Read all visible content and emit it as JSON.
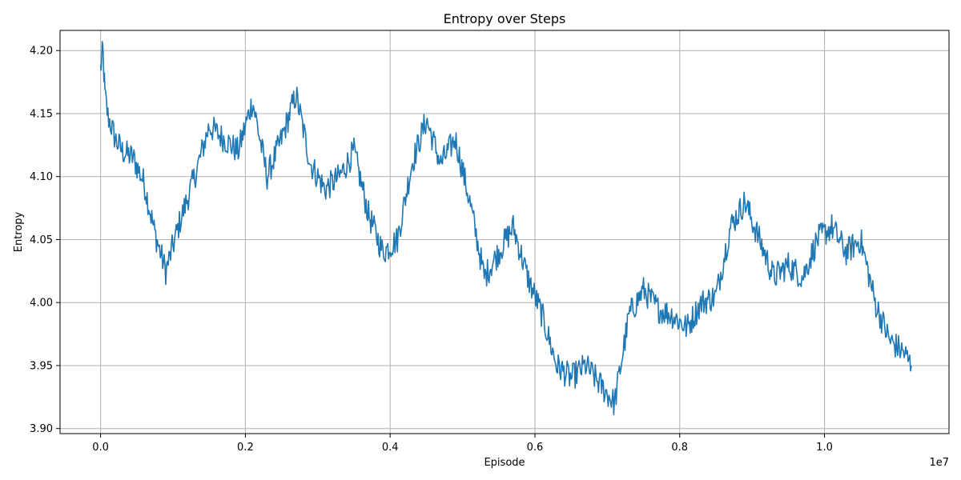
{
  "chart_data": {
    "type": "line",
    "title": "Entropy over Steps",
    "xlabel": "Episode",
    "ylabel": "Entropy",
    "x_offset_label": "1e7",
    "xlim": [
      -0.056,
      1.172
    ],
    "ylim": [
      3.896,
      4.216
    ],
    "xticks": [
      0.0,
      0.2,
      0.4,
      0.6,
      0.8,
      1.0
    ],
    "xtick_labels": [
      "0.0",
      "0.2",
      "0.4",
      "0.6",
      "0.8",
      "1.0"
    ],
    "yticks": [
      3.9,
      3.95,
      4.0,
      4.05,
      4.1,
      4.15,
      4.2
    ],
    "ytick_labels": [
      "3.90",
      "3.95",
      "4.00",
      "4.05",
      "4.10",
      "4.15",
      "4.20"
    ],
    "grid": true,
    "series": [
      {
        "color": "#1f77b4",
        "x": [
          0.0,
          0.003,
          0.006,
          0.01,
          0.015,
          0.02,
          0.03,
          0.045,
          0.06,
          0.075,
          0.09,
          0.11,
          0.13,
          0.15,
          0.17,
          0.19,
          0.21,
          0.23,
          0.25,
          0.27,
          0.29,
          0.31,
          0.33,
          0.35,
          0.37,
          0.39,
          0.41,
          0.43,
          0.45,
          0.47,
          0.49,
          0.51,
          0.53,
          0.55,
          0.57,
          0.59,
          0.61,
          0.63,
          0.65,
          0.67,
          0.69,
          0.71,
          0.73,
          0.75,
          0.77,
          0.79,
          0.81,
          0.83,
          0.85,
          0.87,
          0.89,
          0.91,
          0.93,
          0.95,
          0.97,
          0.99,
          1.01,
          1.03,
          1.05,
          1.07,
          1.09,
          1.11,
          1.12
        ],
        "y": [
          4.185,
          4.2,
          4.165,
          4.148,
          4.14,
          4.13,
          4.12,
          4.115,
          4.095,
          4.055,
          4.025,
          4.065,
          4.1,
          4.14,
          4.13,
          4.12,
          4.16,
          4.1,
          4.13,
          4.165,
          4.11,
          4.09,
          4.1,
          4.12,
          4.07,
          4.04,
          4.05,
          4.11,
          4.145,
          4.11,
          4.13,
          4.08,
          4.02,
          4.04,
          4.06,
          4.02,
          3.99,
          3.95,
          3.94,
          3.95,
          3.935,
          3.92,
          3.99,
          4.01,
          3.995,
          3.99,
          3.98,
          4.0,
          4.005,
          4.06,
          4.08,
          4.05,
          4.02,
          4.03,
          4.02,
          4.05,
          4.06,
          4.04,
          4.05,
          4.0,
          3.97,
          3.96,
          3.95
        ]
      }
    ]
  }
}
